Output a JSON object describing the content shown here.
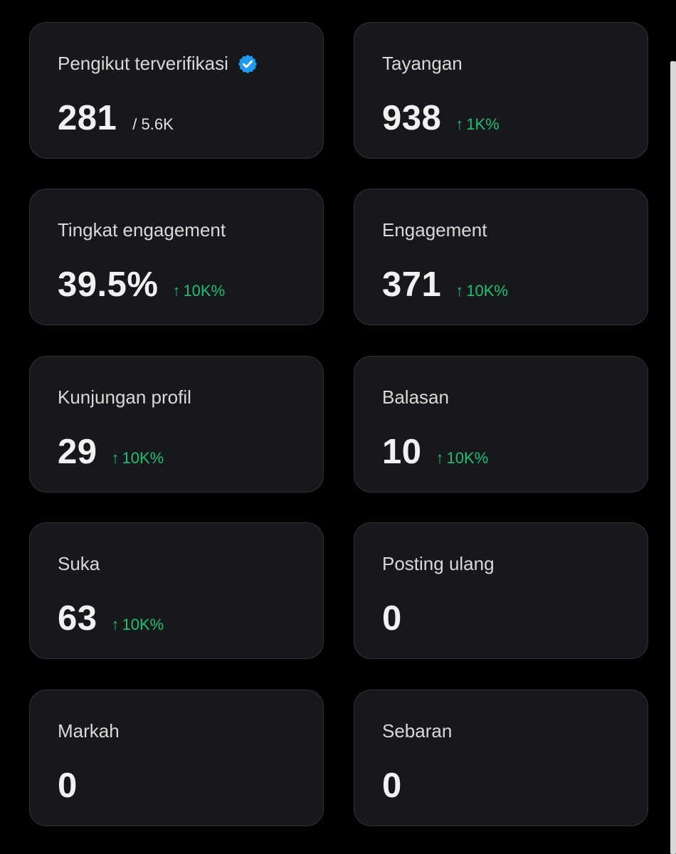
{
  "cards": [
    {
      "label": "Pengikut terverifikasi",
      "value": "281",
      "suffix": "/ 5.6K",
      "verified_icon": "verified-badge-icon",
      "verified_color": "#1d9bf0"
    },
    {
      "label": "Tayangan",
      "value": "938",
      "delta_arrow": "↑",
      "delta": "1K%"
    },
    {
      "label": "Tingkat engagement",
      "value": "39.5%",
      "delta_arrow": "↑",
      "delta": "10K%"
    },
    {
      "label": "Engagement",
      "value": "371",
      "delta_arrow": "↑",
      "delta": "10K%"
    },
    {
      "label": "Kunjungan profil",
      "value": "29",
      "delta_arrow": "↑",
      "delta": "10K%"
    },
    {
      "label": "Balasan",
      "value": "10",
      "delta_arrow": "↑",
      "delta": "10K%"
    },
    {
      "label": "Suka",
      "value": "63",
      "delta_arrow": "↑",
      "delta": "10K%"
    },
    {
      "label": "Posting ulang",
      "value": "0"
    },
    {
      "label": "Markah",
      "value": "0"
    },
    {
      "label": "Sebaran",
      "value": "0"
    }
  ],
  "colors": {
    "background": "#000000",
    "card": "#16181c",
    "card_border": "#2f3336",
    "positive": "#1fbf74",
    "verified": "#1d9bf0"
  }
}
